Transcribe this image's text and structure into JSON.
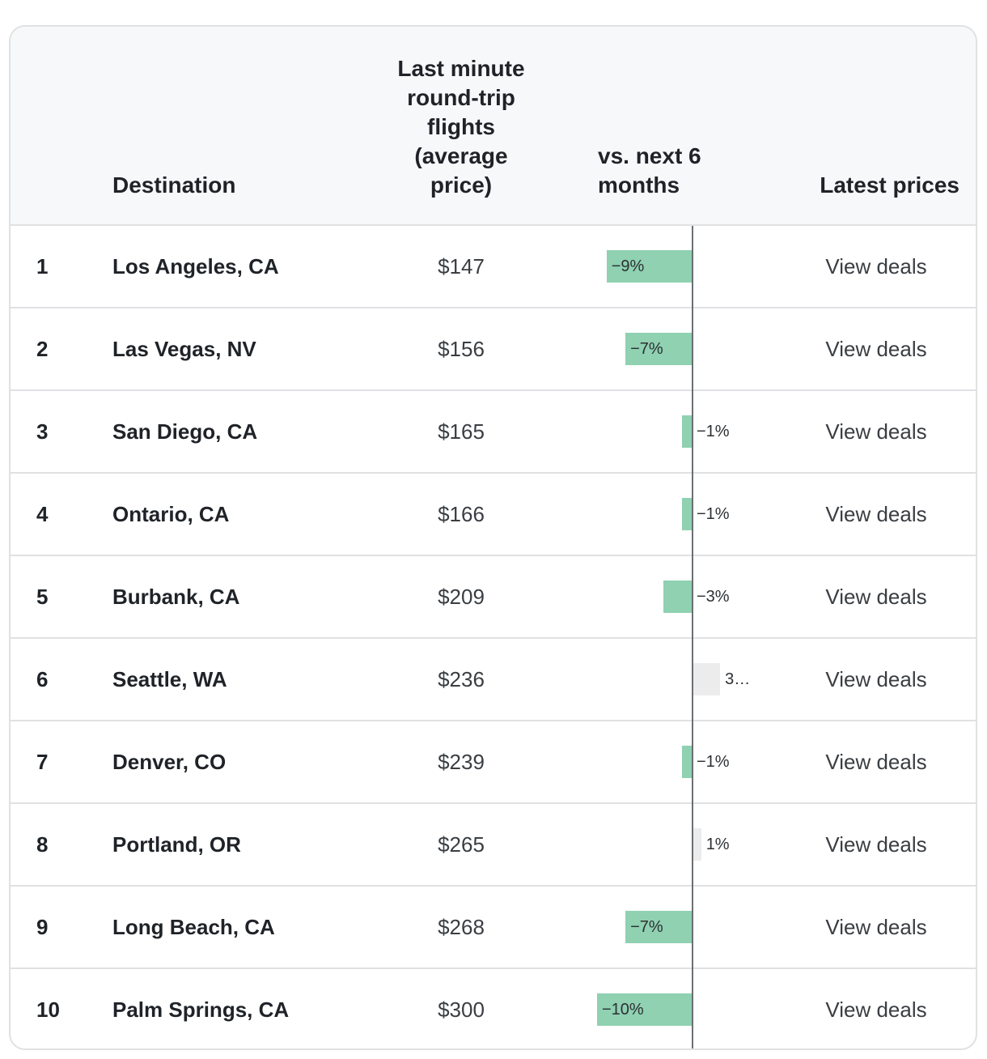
{
  "header": {
    "destination": "Destination",
    "price_lines": [
      "Last minute",
      "round-trip",
      "flights",
      "(average",
      "price)"
    ],
    "change_lines": [
      "vs. next 6",
      "months"
    ],
    "latest": "Latest prices"
  },
  "rows": [
    {
      "rank": "1",
      "destination": "Los Angeles, CA",
      "price": "$147",
      "change": -9,
      "change_label": "−9%",
      "link": "View deals"
    },
    {
      "rank": "2",
      "destination": "Las Vegas, NV",
      "price": "$156",
      "change": -7,
      "change_label": "−7%",
      "link": "View deals"
    },
    {
      "rank": "3",
      "destination": "San Diego, CA",
      "price": "$165",
      "change": -1,
      "change_label": "−1%",
      "link": "View deals"
    },
    {
      "rank": "4",
      "destination": "Ontario, CA",
      "price": "$166",
      "change": -1,
      "change_label": "−1%",
      "link": "View deals"
    },
    {
      "rank": "5",
      "destination": "Burbank, CA",
      "price": "$209",
      "change": -3,
      "change_label": "−3%",
      "link": "View deals"
    },
    {
      "rank": "6",
      "destination": "Seattle, WA",
      "price": "$236",
      "change": 3,
      "change_label": "3…",
      "link": "View deals"
    },
    {
      "rank": "7",
      "destination": "Denver, CO",
      "price": "$239",
      "change": -1,
      "change_label": "−1%",
      "link": "View deals"
    },
    {
      "rank": "8",
      "destination": "Portland, OR",
      "price": "$265",
      "change": 1,
      "change_label": "1%",
      "link": "View deals"
    },
    {
      "rank": "9",
      "destination": "Long Beach, CA",
      "price": "$268",
      "change": -7,
      "change_label": "−7%",
      "link": "View deals"
    },
    {
      "rank": "10",
      "destination": "Palm Springs, CA",
      "price": "$300",
      "change": -10,
      "change_label": "−10%",
      "link": "View deals"
    }
  ],
  "colors": {
    "negative_bar": "#8fd1b1",
    "positive_bar": "#ececec",
    "header_bg": "#f7f8f9",
    "border": "#dfe1e3"
  }
}
